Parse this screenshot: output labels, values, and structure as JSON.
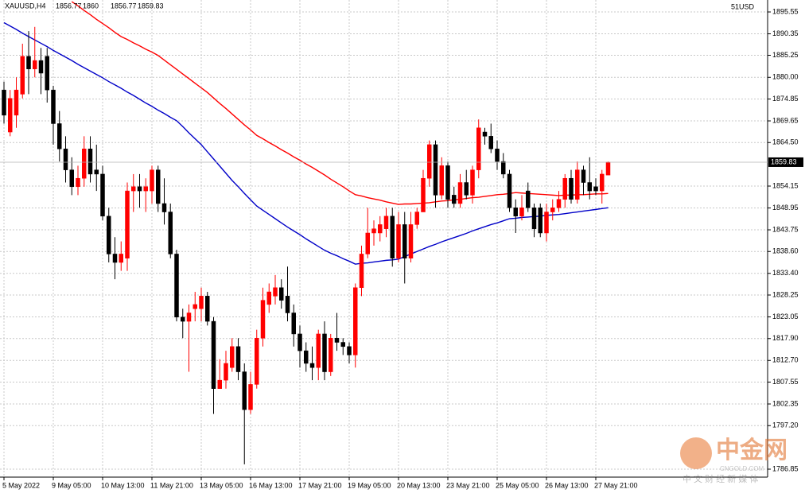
{
  "chart_data": {
    "type": "candlestick",
    "title": "XAUUSD,H4",
    "corner_label": "51USD",
    "watermark": {
      "logo": "中金网",
      "site": "CNGOLD.COM",
      "slogan": "中 文 财 经 新 媒 体"
    },
    "up_color": "#ff0000",
    "down_color": "#000000",
    "grid": true,
    "ylim": [
      1784.96,
      1898.39
    ],
    "yticks": [
      {
        "value": 1895.55,
        "label": "1895.55"
      },
      {
        "value": 1890.35,
        "label": "1890.35"
      },
      {
        "value": 1885.25,
        "label": "1885.25"
      },
      {
        "value": 1880.0,
        "label": "1880.00"
      },
      {
        "value": 1874.85,
        "label": "1874.85"
      },
      {
        "value": 1869.65,
        "label": "1869.65"
      },
      {
        "value": 1864.5,
        "label": "1864.50"
      },
      {
        "value": 1854.15,
        "label": "1854.15"
      },
      {
        "value": 1848.95,
        "label": "1848.95"
      },
      {
        "value": 1843.75,
        "label": "1843.75"
      },
      {
        "value": 1838.6,
        "label": "1838.60"
      },
      {
        "value": 1833.4,
        "label": "1833.40"
      },
      {
        "value": 1828.25,
        "label": "1828.25"
      },
      {
        "value": 1823.05,
        "label": "1823.05"
      },
      {
        "value": 1817.9,
        "label": "1817.90"
      },
      {
        "value": 1812.7,
        "label": "1812.70"
      },
      {
        "value": 1807.55,
        "label": "1807.55"
      },
      {
        "value": 1802.35,
        "label": "1802.35"
      },
      {
        "value": 1797.2,
        "label": "1797.20"
      },
      {
        "value": 1786.85,
        "label": "1786.85"
      }
    ],
    "categories": [
      "5 May 2022",
      null,
      null,
      null,
      null,
      null,
      null,
      null,
      "9 May 05:00",
      null,
      null,
      null,
      null,
      null,
      null,
      null,
      "10 May 13:00",
      null,
      null,
      null,
      null,
      null,
      null,
      null,
      "11 May 21:00",
      null,
      null,
      null,
      null,
      null,
      null,
      null,
      "13 May 05:00",
      null,
      null,
      null,
      null,
      null,
      null,
      null,
      "16 May 13:00",
      null,
      null,
      null,
      null,
      null,
      null,
      null,
      "17 May 21:00",
      null,
      null,
      null,
      null,
      null,
      null,
      null,
      "19 May 05:00",
      null,
      null,
      null,
      null,
      null,
      null,
      null,
      "20 May 13:00",
      null,
      null,
      null,
      null,
      null,
      null,
      null,
      "23 May 21:00",
      null,
      null,
      null,
      null,
      null,
      null,
      null,
      "25 May 05:00",
      null,
      null,
      null,
      null,
      null,
      null,
      null,
      "26 May 13:00",
      null,
      null,
      null,
      null,
      null,
      null,
      null,
      "27 May 21:00",
      null,
      null
    ],
    "open": [
      1877,
      1867,
      1871,
      1876,
      1885,
      1882,
      1884,
      1885,
      1877,
      1869,
      1863,
      1858,
      1854,
      1856,
      1863,
      1858,
      1857,
      1847,
      1838,
      1836,
      1837,
      1853,
      1854,
      1853,
      1853,
      1858,
      1850,
      1848,
      1838,
      1823,
      1822,
      1825,
      1825,
      1828,
      1822,
      1806,
      1808,
      1811,
      1816,
      1810,
      1801,
      1807,
      1818,
      1826,
      1828,
      1830,
      1828,
      1824,
      1819,
      1815,
      1812,
      1811,
      1819,
      1810,
      1818,
      1817,
      1816,
      1814,
      1830,
      1838,
      1843,
      1843,
      1844,
      1847,
      1837,
      1845,
      1837,
      1845,
      1848,
      1856,
      1864,
      1852,
      1859,
      1852,
      1850,
      1855,
      1852,
      1858,
      1867,
      1866,
      1863,
      1860,
      1857,
      1849,
      1847,
      1853,
      1849,
      1849,
      1843,
      1848,
      1849,
      1851,
      1856,
      1851,
      1858,
      1855,
      1854,
      1853,
      1856.77
    ],
    "high": [
      1879,
      1877,
      1880,
      1888,
      1891,
      1892,
      1887,
      1887,
      1878,
      1872,
      1866,
      1861,
      1859,
      1866,
      1866,
      1864,
      1859,
      1849,
      1842,
      1841,
      1855,
      1857,
      1857,
      1856,
      1859,
      1859,
      1856,
      1850,
      1839,
      1825,
      1826,
      1829,
      1830,
      1829,
      1823,
      1813,
      1815,
      1818,
      1818,
      1812,
      1810,
      1820,
      1830,
      1831,
      1833,
      1832,
      1835,
      1826,
      1821,
      1817,
      1816,
      1820,
      1822,
      1819,
      1824,
      1818,
      1817,
      1831,
      1840,
      1849,
      1846,
      1847,
      1849,
      1849,
      1848,
      1848,
      1848,
      1849,
      1858,
      1865,
      1865,
      1861,
      1860,
      1854,
      1857,
      1858,
      1859,
      1870,
      1868,
      1869,
      1865,
      1862,
      1858,
      1851,
      1852,
      1855,
      1850,
      1850,
      1850,
      1851,
      1853,
      1857,
      1858,
      1860,
      1859,
      1861,
      1856,
      1858,
      1860.0
    ],
    "low": [
      1869,
      1866,
      1868,
      1875,
      1876,
      1880,
      1876,
      1874,
      1864,
      1860,
      1855,
      1852,
      1852,
      1854,
      1855,
      1853,
      1846,
      1836,
      1832,
      1834,
      1834,
      1848,
      1849,
      1848,
      1850,
      1848,
      1845,
      1837,
      1822,
      1818,
      1810,
      1822,
      1822,
      1821,
      1800,
      1806,
      1806,
      1810,
      1808,
      1788,
      1800,
      1806,
      1816,
      1824,
      1826,
      1825,
      1822,
      1816,
      1811,
      1810,
      1808,
      1808,
      1808,
      1809,
      1815,
      1814,
      1812,
      1811,
      1828,
      1837,
      1840,
      1841,
      1842,
      1835,
      1836,
      1831,
      1836,
      1844,
      1848,
      1854,
      1849,
      1851,
      1849,
      1849,
      1849,
      1851,
      1850,
      1856,
      1864,
      1862,
      1858,
      1856,
      1848,
      1843,
      1846,
      1848,
      1842,
      1842,
      1841,
      1846,
      1848,
      1849,
      1850,
      1850,
      1852,
      1851,
      1852,
      1850,
      1856.77
    ],
    "close": [
      1871,
      1875,
      1877,
      1885,
      1882,
      1884,
      1881,
      1877,
      1869,
      1863,
      1858,
      1854,
      1856,
      1863,
      1857,
      1857,
      1847,
      1838,
      1836,
      1838,
      1853,
      1854,
      1853,
      1854,
      1858,
      1850,
      1848,
      1838,
      1823,
      1822,
      1824,
      1826,
      1828,
      1822,
      1806,
      1808,
      1812,
      1816,
      1810,
      1801,
      1807,
      1818,
      1827,
      1829,
      1830,
      1827,
      1824,
      1819,
      1815,
      1812,
      1811,
      1819,
      1810,
      1818,
      1817,
      1816,
      1814,
      1830,
      1838,
      1843,
      1844,
      1845,
      1847,
      1837,
      1845,
      1837,
      1845,
      1848,
      1856,
      1864,
      1852,
      1859,
      1851,
      1850,
      1855,
      1852,
      1858,
      1868,
      1866,
      1863,
      1860,
      1857,
      1849,
      1847,
      1849,
      1849,
      1844,
      1843,
      1848,
      1849,
      1851,
      1856,
      1851,
      1858,
      1855,
      1853,
      1853,
      1857,
      1859.83
    ],
    "lines": [
      {
        "color": "#ff0000",
        "values": [
          null,
          null,
          null,
          null,
          null,
          null,
          null,
          null,
          null,
          null,
          null,
          1898.0,
          1897.0,
          1895.9,
          1894.9,
          1893.8,
          1892.8,
          1891.8,
          1890.7,
          1889.7,
          1889.0,
          1888.2,
          1887.5,
          1886.7,
          1886.0,
          1885.2,
          1884.1,
          1883.0,
          1881.9,
          1880.8,
          1879.7,
          1878.6,
          1877.5,
          1876.4,
          1875.1,
          1873.8,
          1872.6,
          1871.3,
          1870.0,
          1868.7,
          1867.5,
          1866.2,
          1865.4,
          1864.5,
          1863.7,
          1862.8,
          1862.0,
          1861.1,
          1860.3,
          1859.4,
          1858.6,
          1857.7,
          1856.8,
          1855.8,
          1854.9,
          1854.0,
          1853.0,
          1852.1,
          1851.8,
          1851.4,
          1851.1,
          1850.8,
          1850.4,
          1850.1,
          1849.8,
          1849.9,
          1849.9,
          1850.0,
          1850.1,
          1850.2,
          1850.4,
          1850.6,
          1850.7,
          1850.9,
          1851.0,
          1851.2,
          1851.4,
          1851.5,
          1851.7,
          1851.9,
          1852.1,
          1852.2,
          1852.4,
          1852.6,
          1852.5,
          1852.4,
          1852.3,
          1852.2,
          1852.1,
          1852.0,
          1851.9,
          1852.0,
          1852.0,
          1852.1,
          1852.1,
          1852.2,
          1852.3,
          1852.3,
          1852.4
        ]
      },
      {
        "color": "#0000c8",
        "values": [
          1893.0,
          1892.2,
          1891.4,
          1890.5,
          1889.7,
          1888.9,
          1888.1,
          1887.3,
          1886.4,
          1885.6,
          1884.8,
          1884.0,
          1883.1,
          1882.3,
          1881.5,
          1880.7,
          1879.9,
          1879.0,
          1878.2,
          1877.4,
          1876.5,
          1875.7,
          1874.8,
          1873.9,
          1873.1,
          1872.2,
          1871.4,
          1870.5,
          1869.7,
          1868.3,
          1866.8,
          1865.4,
          1864.0,
          1862.3,
          1860.6,
          1858.9,
          1857.2,
          1855.5,
          1854.0,
          1852.4,
          1850.9,
          1849.4,
          1848.4,
          1847.4,
          1846.4,
          1845.4,
          1844.4,
          1843.5,
          1842.6,
          1841.6,
          1840.7,
          1839.8,
          1838.9,
          1838.2,
          1837.6,
          1836.9,
          1836.3,
          1835.6,
          1835.8,
          1835.9,
          1836.1,
          1836.3,
          1836.5,
          1836.6,
          1836.8,
          1837.4,
          1838.0,
          1838.6,
          1839.2,
          1839.8,
          1840.3,
          1840.9,
          1841.4,
          1841.9,
          1842.4,
          1842.9,
          1843.5,
          1844.0,
          1844.5,
          1845.0,
          1845.4,
          1845.9,
          1846.4,
          1846.5,
          1846.7,
          1846.8,
          1846.9,
          1847.0,
          1847.2,
          1847.3,
          1847.4,
          1847.6,
          1847.8,
          1848.0,
          1848.2,
          1848.4,
          1848.6,
          1848.8,
          1849.0
        ]
      }
    ]
  }
}
